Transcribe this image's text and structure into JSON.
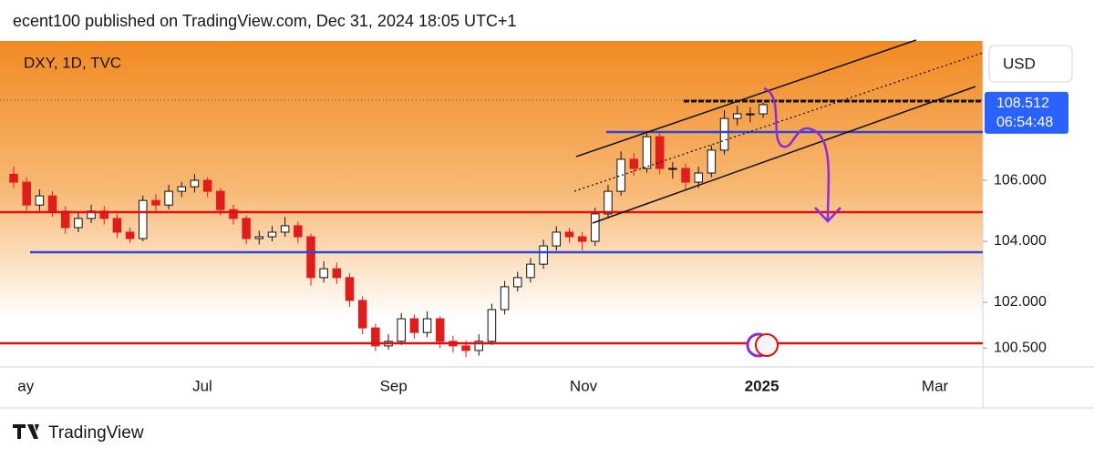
{
  "header": {
    "byline": "ecent100 published on TradingView.com, Dec 31, 2024 18:05 UTC+1"
  },
  "footer": {
    "brand": "TradingView"
  },
  "chart_data": {
    "type": "candlestick",
    "title": "DXY, 1D, TVC",
    "currency": "USD",
    "countdown": "06:54:48",
    "last_price": 108.512,
    "up_color": "#ffffff",
    "down_color": "#e21b1b",
    "open": [
      106.2,
      105.94,
      105.19,
      105.49,
      104.99,
      104.45,
      104.75,
      104.99,
      104.75,
      104.3,
      104.09,
      105.34,
      105.19,
      105.64,
      105.79,
      106.0,
      105.64,
      105.04,
      104.75,
      104.09,
      104.15,
      104.3,
      104.51,
      104.15,
      102.81,
      103.1,
      102.81,
      102.06,
      101.16,
      100.57,
      100.72,
      101.46,
      101.01,
      101.46,
      100.72,
      100.57,
      100.42,
      100.72,
      101.76,
      102.51,
      102.81,
      103.25,
      103.85,
      104.3,
      104.15,
      104.0,
      104.9,
      105.64,
      106.69,
      106.39,
      107.43,
      106.39,
      106.39,
      105.94,
      106.24,
      106.99,
      108.03,
      108.18,
      108.18
    ],
    "high": [
      106.45,
      106.1,
      105.7,
      105.65,
      105.15,
      104.95,
      105.2,
      105.15,
      104.9,
      104.45,
      105.5,
      105.55,
      105.85,
      105.95,
      106.2,
      106.1,
      105.75,
      105.2,
      104.85,
      104.35,
      104.5,
      104.8,
      104.65,
      104.25,
      103.35,
      103.3,
      102.95,
      102.2,
      101.3,
      100.95,
      101.65,
      101.6,
      101.7,
      101.55,
      100.9,
      100.75,
      100.95,
      101.95,
      102.7,
      103.0,
      103.45,
      104.05,
      104.5,
      104.45,
      104.3,
      105.1,
      105.85,
      106.95,
      106.9,
      107.6,
      107.55,
      106.6,
      106.55,
      106.45,
      107.15,
      108.3,
      108.45,
      108.4,
      108.55
    ],
    "low": [
      105.75,
      105.0,
      105.0,
      104.8,
      104.25,
      104.3,
      104.6,
      104.55,
      104.1,
      103.95,
      104.0,
      105.0,
      105.05,
      105.45,
      105.6,
      105.45,
      104.85,
      104.55,
      103.9,
      103.9,
      104.0,
      104.15,
      103.95,
      102.55,
      102.65,
      102.6,
      101.85,
      100.95,
      100.4,
      100.45,
      100.6,
      100.8,
      100.85,
      100.5,
      100.35,
      100.2,
      100.25,
      100.6,
      101.6,
      102.35,
      102.65,
      103.1,
      103.7,
      103.95,
      103.7,
      103.85,
      104.75,
      105.5,
      106.15,
      106.25,
      106.2,
      106.05,
      105.7,
      105.75,
      106.1,
      106.85,
      107.8,
      107.9,
      108.05
    ],
    "close": [
      105.94,
      105.19,
      105.49,
      104.99,
      104.45,
      104.75,
      104.99,
      104.75,
      104.3,
      104.09,
      105.34,
      105.19,
      105.64,
      105.79,
      106.0,
      105.64,
      105.04,
      104.75,
      104.09,
      104.15,
      104.3,
      104.51,
      104.15,
      102.81,
      103.1,
      102.81,
      102.06,
      101.16,
      100.57,
      100.72,
      101.46,
      101.01,
      101.46,
      100.72,
      100.57,
      100.42,
      100.72,
      101.76,
      102.51,
      102.81,
      103.25,
      103.85,
      104.3,
      104.15,
      104.0,
      104.9,
      105.64,
      106.69,
      106.39,
      107.43,
      106.39,
      106.39,
      105.94,
      106.24,
      106.99,
      108.03,
      108.18,
      108.18,
      108.48
    ],
    "xlim": [
      -1.06,
      75.0
    ],
    "xticks": [
      {
        "value": 0.3,
        "label": "ay"
      },
      {
        "value": 14.6,
        "label": "Jul"
      },
      {
        "value": 29.4,
        "label": "Sep"
      },
      {
        "value": 44.1,
        "label": "Nov"
      },
      {
        "value": 57.9,
        "label": "2025"
      },
      {
        "value": 71.3,
        "label": "Mar"
      }
    ],
    "ylim": [
      99.88,
      110.57
    ],
    "yticks": [
      {
        "value": 100.5,
        "label": "100.500"
      },
      {
        "value": 102,
        "label": "102.000"
      },
      {
        "value": 104,
        "label": "104.000"
      },
      {
        "value": 106,
        "label": "106.000"
      }
    ]
  }
}
